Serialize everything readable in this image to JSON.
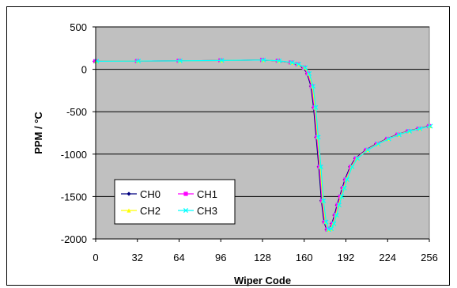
{
  "chart_data": {
    "type": "line",
    "title": "",
    "xlabel": "Wiper Code",
    "ylabel": "PPM / °C",
    "xlim": [
      0,
      256
    ],
    "ylim": [
      -2000,
      500
    ],
    "xticks": [
      0,
      32,
      64,
      96,
      128,
      160,
      192,
      224,
      256
    ],
    "yticks": [
      500,
      0,
      -500,
      -1000,
      -1500,
      -2000
    ],
    "grid": "horizontal",
    "legend_position": "lower-left",
    "plot_background": "#c0c0c0",
    "series": [
      {
        "name": "CH0",
        "color": "#000080",
        "marker": "diamond",
        "x": [
          0,
          32,
          64,
          96,
          128,
          140,
          150,
          155,
          160,
          163,
          166,
          168,
          170,
          172,
          174,
          176,
          178,
          180,
          182,
          184,
          186,
          188,
          190,
          192,
          196,
          200,
          208,
          216,
          224,
          232,
          240,
          248,
          256
        ],
        "y": [
          95,
          97,
          100,
          105,
          110,
          100,
          80,
          60,
          20,
          -50,
          -200,
          -450,
          -800,
          -1150,
          -1550,
          -1800,
          -1890,
          -1880,
          -1820,
          -1720,
          -1600,
          -1500,
          -1400,
          -1300,
          -1150,
          -1050,
          -950,
          -880,
          -820,
          -770,
          -730,
          -700,
          -670
        ]
      },
      {
        "name": "CH1",
        "color": "#ff00ff",
        "marker": "square",
        "x": [
          0,
          32,
          64,
          96,
          128,
          140,
          150,
          155,
          160,
          163,
          166,
          168,
          170,
          172,
          174,
          176,
          178,
          180,
          182,
          184,
          186,
          188,
          190,
          192,
          196,
          200,
          208,
          216,
          224,
          232,
          240,
          248,
          256
        ],
        "y": [
          95,
          97,
          100,
          105,
          110,
          100,
          80,
          60,
          20,
          -50,
          -200,
          -450,
          -800,
          -1150,
          -1550,
          -1800,
          -1890,
          -1880,
          -1820,
          -1720,
          -1600,
          -1500,
          -1400,
          -1300,
          -1150,
          -1050,
          -950,
          -880,
          -820,
          -770,
          -730,
          -700,
          -670
        ]
      },
      {
        "name": "CH2",
        "color": "#ffff00",
        "marker": "triangle",
        "x": [
          0,
          32,
          64,
          96,
          128,
          140,
          150,
          155,
          160,
          163,
          166,
          168,
          170,
          172,
          174,
          176,
          178,
          180,
          182,
          184,
          186,
          188,
          190,
          192,
          196,
          200,
          208,
          216,
          224,
          232,
          240,
          248,
          256
        ],
        "y": [
          95,
          97,
          100,
          105,
          110,
          100,
          80,
          60,
          20,
          -50,
          -200,
          -450,
          -800,
          -1150,
          -1550,
          -1800,
          -1890,
          -1880,
          -1820,
          -1720,
          -1600,
          -1500,
          -1400,
          -1300,
          -1150,
          -1050,
          -950,
          -880,
          -820,
          -770,
          -730,
          -700,
          -670
        ]
      },
      {
        "name": "CH3",
        "color": "#00ffff",
        "marker": "x",
        "x": [
          0,
          32,
          64,
          96,
          128,
          140,
          150,
          155,
          160,
          163,
          166,
          168,
          170,
          172,
          174,
          176,
          178,
          180,
          182,
          184,
          186,
          188,
          190,
          192,
          196,
          200,
          208,
          216,
          224,
          232,
          240,
          248,
          256
        ],
        "y": [
          95,
          97,
          100,
          105,
          110,
          100,
          80,
          60,
          20,
          -50,
          -200,
          -450,
          -800,
          -1150,
          -1550,
          -1800,
          -1890,
          -1880,
          -1820,
          -1720,
          -1600,
          -1500,
          -1400,
          -1300,
          -1150,
          -1050,
          -950,
          -880,
          -820,
          -770,
          -730,
          -700,
          -670
        ]
      }
    ]
  }
}
